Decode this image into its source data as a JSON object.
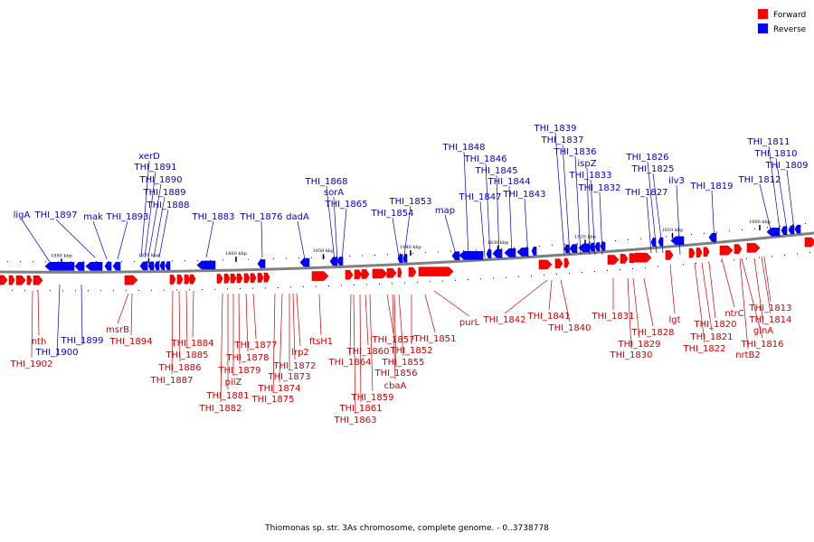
{
  "caption": "Thiomonas sp. str. 3As chromosome, complete genome. - 0..3738778",
  "legend": {
    "forward": {
      "label": "Forward",
      "color": "#ff0000"
    },
    "reverse": {
      "label": "Reverse",
      "color": "#0000ff"
    }
  },
  "colors": {
    "forward_dark": "#cc0000",
    "reverse_dark": "#0000cc",
    "backbone": "#808080"
  },
  "tick_labels": [
    {
      "label": "1880 kbp",
      "pos": 1880
    },
    {
      "label": "1870 kbp",
      "pos": 1870
    },
    {
      "label": "1860 kbp",
      "pos": 1860
    },
    {
      "label": "1850 kbp",
      "pos": 1850
    },
    {
      "label": "1840 kbp",
      "pos": 1840
    },
    {
      "label": "1830 kbp",
      "pos": 1830
    },
    {
      "label": "1820 kbp",
      "pos": 1820
    },
    {
      "label": "1810 kbp",
      "pos": 1810
    },
    {
      "label": "1800 kbp",
      "pos": 1800
    }
  ],
  "reverse_labels": [
    "ligA",
    "THI_1897",
    "mak",
    "THI_1893",
    "xerD",
    "THI_1891",
    "THI_1890",
    "THI_1889",
    "THI_1888",
    "THI_1883",
    "THI_1876",
    "dadA",
    "THI_1868",
    "sorA",
    "THI_1865",
    "THI_1854",
    "THI_1853",
    "map",
    "THI_1848",
    "THI_1847",
    "THI_1846",
    "THI_1845",
    "THI_1844",
    "THI_1843",
    "THI_1839",
    "THI_1837",
    "THI_1836",
    "ispZ",
    "THI_1833",
    "THI_1832",
    "THI_1827",
    "THI_1826",
    "THI_1825",
    "ilv3",
    "THI_1819",
    "THI_1812",
    "THI_1811",
    "THI_1810",
    "THI_1809",
    "THI_1900",
    "THI_1899"
  ],
  "forward_labels": [
    "nth",
    "THI_1902",
    "msrB",
    "THI_1894",
    "THI_1884",
    "THI_1885",
    "THI_1886",
    "THI_1887",
    "pilZ",
    "THI_1881",
    "THI_1882",
    "THI_1877",
    "THI_1878",
    "THI_1879",
    "THI_1873",
    "THI_1874",
    "THI_1875",
    "lrp2",
    "THI_1872",
    "ftsH1",
    "THI_1860",
    "THI_1864",
    "THI_1861",
    "THI_1863",
    "THI_1857",
    "THI_1855",
    "THI_1856",
    "cbaA",
    "THI_1859",
    "THI_1852",
    "THI_1851",
    "purL",
    "THI_1842",
    "THI_1841",
    "THI_1840",
    "THI_1831",
    "THI_1828",
    "THI_1829",
    "THI_1830",
    "lgt",
    "THI_1820",
    "THI_1821",
    "THI_1822",
    "ntrC",
    "THI_1816",
    "nrtB2",
    "glnA",
    "THI_1813",
    "THI_1814"
  ]
}
